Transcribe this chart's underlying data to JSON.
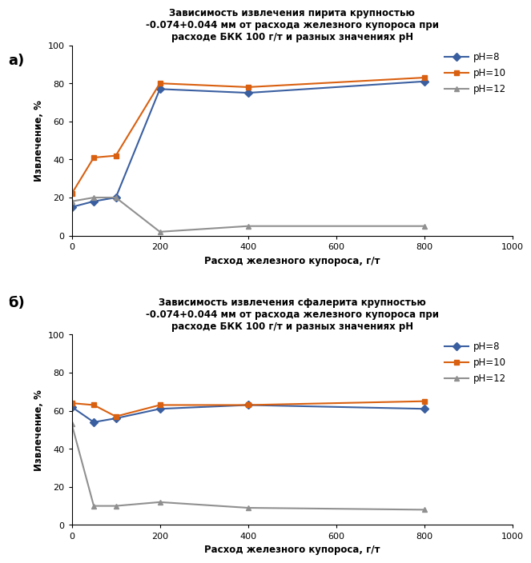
{
  "title_a": "Зависимость извлечения пирита крупностью\n-0.074+0.044 мм от расхода железного купороса при\nрасходе БКК 100 г/т и разных значениях pH",
  "title_b": "Зависимость извлечения сфалерита крупностью\n-0.074+0.044 мм от расхода железного купороса при\nрасходе БКК 100 г/т и разных значениях pH",
  "xlabel": "Расход железного купороса, г/т",
  "ylabel": "Извлечение, %",
  "xlim": [
    0,
    1000
  ],
  "ylim": [
    0,
    100
  ],
  "xticks": [
    0,
    200,
    400,
    600,
    800,
    1000
  ],
  "yticks": [
    0,
    20,
    40,
    60,
    80,
    100
  ],
  "x": [
    0,
    50,
    100,
    200,
    400,
    800
  ],
  "pyrite_ph8": [
    15,
    18,
    20,
    77,
    75,
    81
  ],
  "pyrite_ph10": [
    22,
    41,
    42,
    80,
    78,
    83
  ],
  "pyrite_ph12": [
    18,
    20,
    20,
    2,
    5,
    5
  ],
  "sphal_ph8": [
    62,
    54,
    56,
    61,
    63,
    61
  ],
  "sphal_ph10": [
    64,
    63,
    57,
    63,
    63,
    65
  ],
  "sphal_ph12": [
    53,
    10,
    10,
    12,
    9,
    8
  ],
  "color_ph8": "#3a5fa0",
  "color_ph10": "#d96010",
  "color_ph12": "#909090",
  "label_a": "а)",
  "label_b": "б)",
  "legend_ph8": "pH=8",
  "legend_ph10": "рН=10",
  "legend_ph12": "pH=12",
  "title_fontsize": 8.5,
  "axis_label_fontsize": 8.5,
  "tick_fontsize": 8,
  "legend_fontsize": 8.5,
  "label_fontsize": 13,
  "marker_size": 5,
  "line_width": 1.5
}
